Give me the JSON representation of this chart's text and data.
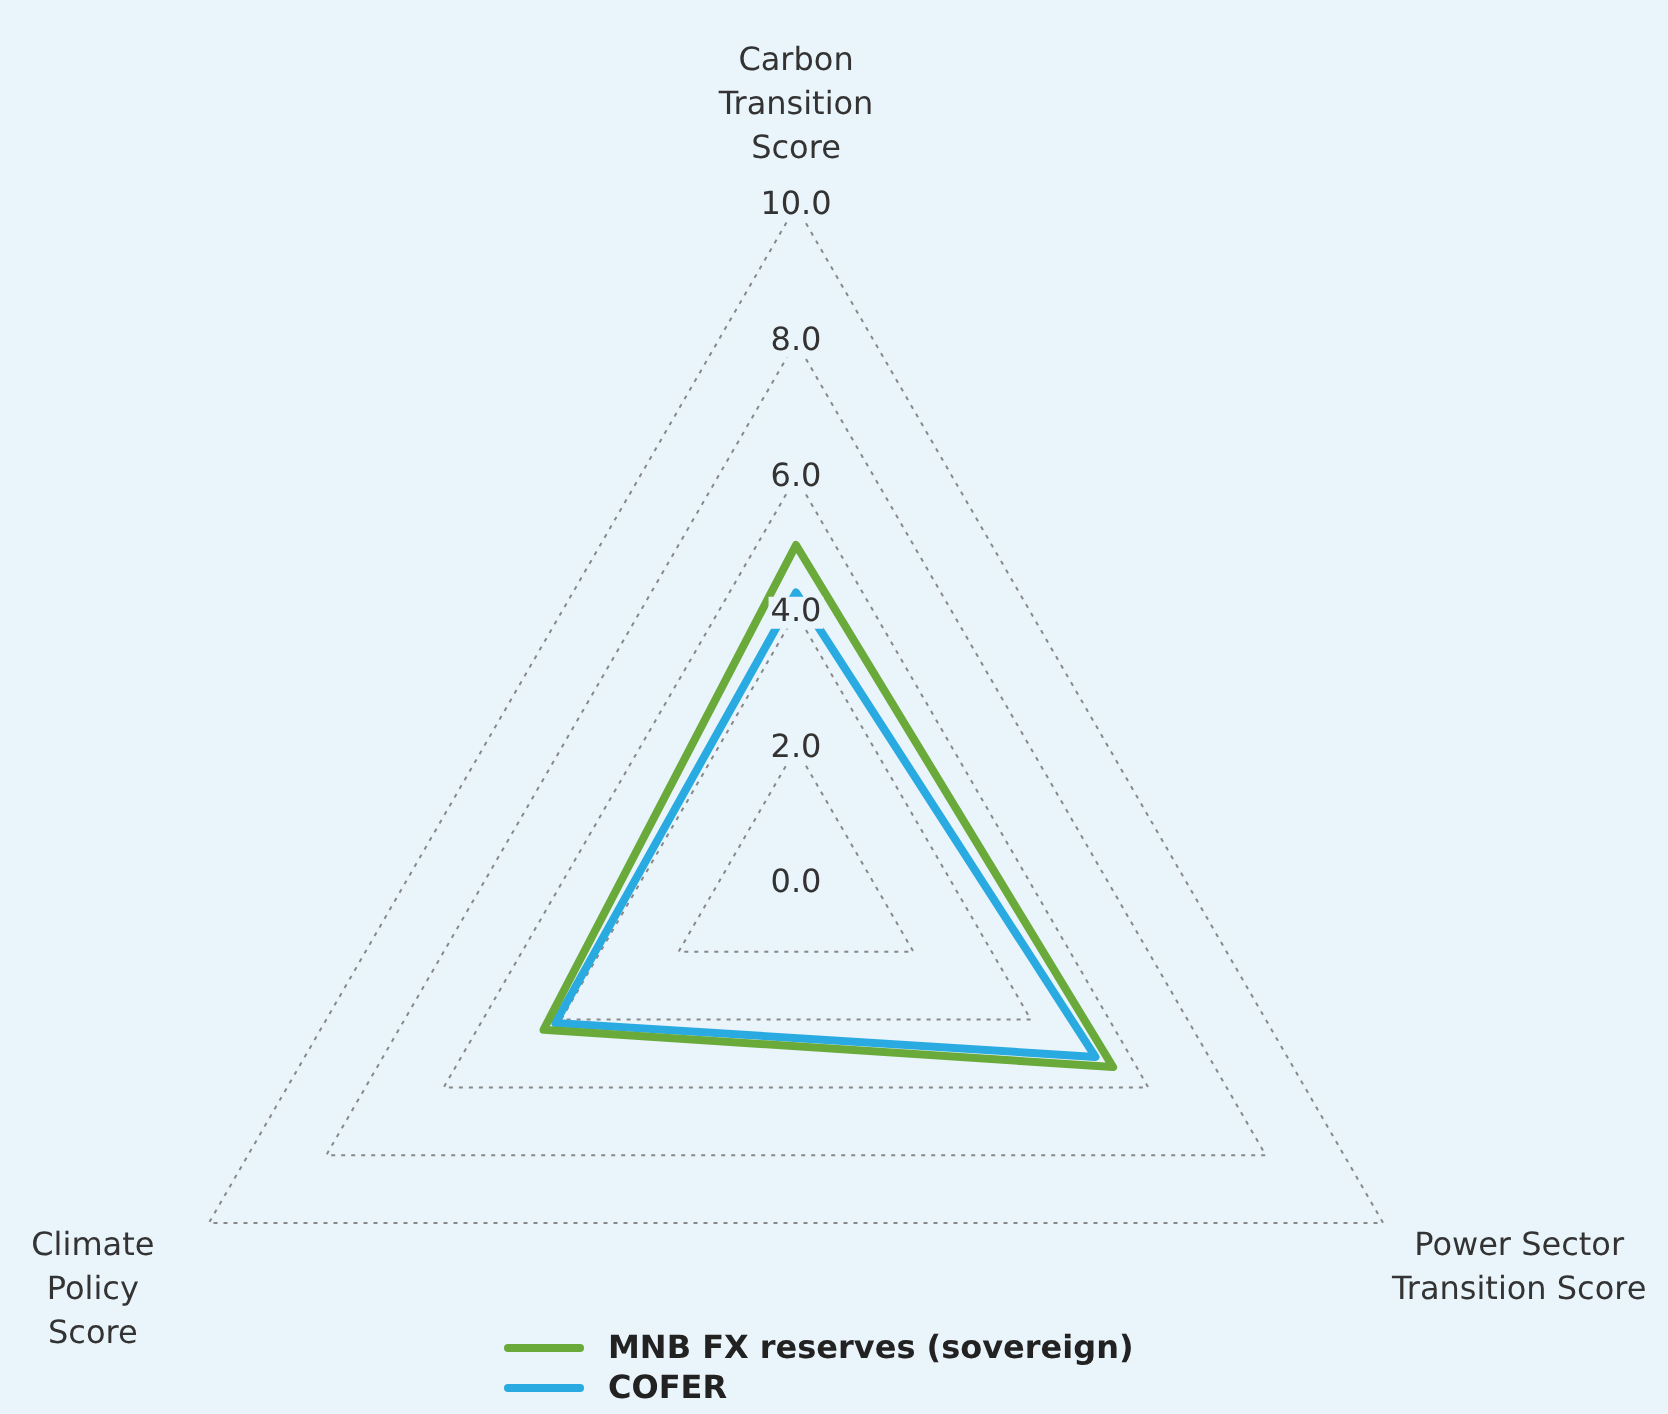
{
  "chart_data": {
    "type": "radar",
    "categories": [
      "Carbon Transition Score",
      "Power Sector Transition Score",
      "Climate Policy Score"
    ],
    "series": [
      {
        "name": "MNB FX reserves (sovereign)",
        "color": "#6aaa3a",
        "values": [
          5.0,
          5.4,
          4.3
        ]
      },
      {
        "name": "COFER",
        "color": "#29abe2",
        "values": [
          4.3,
          5.1,
          4.1
        ]
      }
    ],
    "ylim": [
      0,
      10
    ],
    "yticks": [
      {
        "value": 0,
        "label": "0.0"
      },
      {
        "value": 2,
        "label": "2.0"
      },
      {
        "value": 4,
        "label": "4.0"
      },
      {
        "value": 6,
        "label": "6.0"
      },
      {
        "value": 8,
        "label": "8.0"
      },
      {
        "value": 10,
        "label": "10.0"
      }
    ],
    "grid": true,
    "legend": "bottom",
    "line_style": "solid",
    "marker": "none"
  }
}
